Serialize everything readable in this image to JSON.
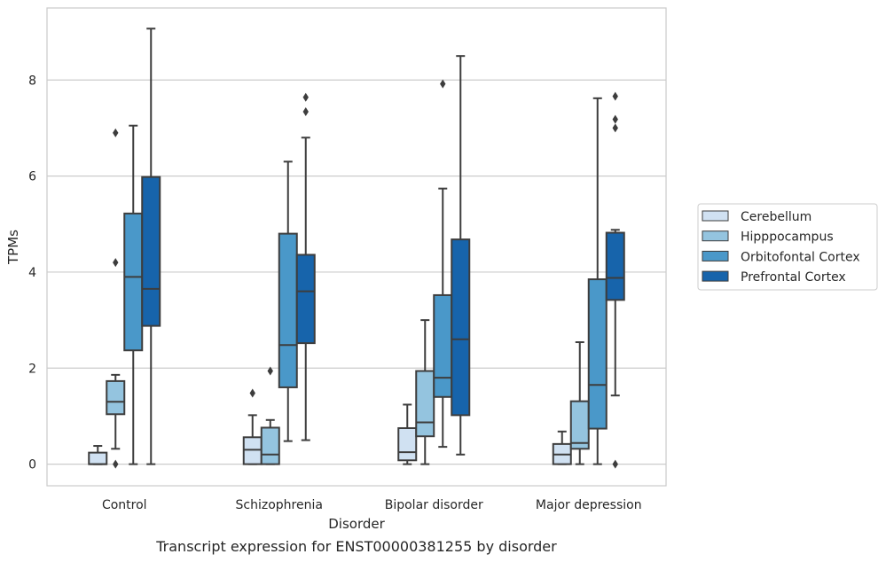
{
  "caption": "Transcript expression for ENST00000381255 by disorder",
  "chart_data": {
    "type": "box",
    "xlabel": "Disorder",
    "ylabel": "TPMs",
    "ylim": [
      -0.45,
      9.5
    ],
    "yticks": [
      0,
      2,
      4,
      6,
      8
    ],
    "grid": "y",
    "legend_position": "right",
    "categories": [
      "Control",
      "Schizophrenia",
      "Bipolar disorder",
      "Major depression"
    ],
    "series": [
      {
        "name": "Cerebellum",
        "color": "#d0e1f2",
        "boxes": [
          {
            "whislo": 0.0,
            "q1": 0.0,
            "med": 0.0,
            "q3": 0.24,
            "whishi": 0.38,
            "fliers": []
          },
          {
            "whislo": 0.0,
            "q1": 0.0,
            "med": 0.3,
            "q3": 0.56,
            "whishi": 1.02,
            "fliers": [
              1.48
            ]
          },
          {
            "whislo": 0.0,
            "q1": 0.08,
            "med": 0.25,
            "q3": 0.75,
            "whishi": 1.24,
            "fliers": []
          },
          {
            "whislo": 0.0,
            "q1": 0.0,
            "med": 0.2,
            "q3": 0.42,
            "whishi": 0.68,
            "fliers": []
          }
        ]
      },
      {
        "name": "Hipppocampus",
        "color": "#94c4df",
        "boxes": [
          {
            "whislo": 0.32,
            "q1": 1.04,
            "med": 1.3,
            "q3": 1.73,
            "whishi": 1.86,
            "fliers": [
              0.0,
              4.2,
              6.9
            ]
          },
          {
            "whislo": 0.0,
            "q1": 0.0,
            "med": 0.2,
            "q3": 0.76,
            "whishi": 0.92,
            "fliers": [
              1.94
            ]
          },
          {
            "whislo": 0.0,
            "q1": 0.58,
            "med": 0.87,
            "q3": 1.94,
            "whishi": 3.0,
            "fliers": []
          },
          {
            "whislo": 0.0,
            "q1": 0.32,
            "med": 0.44,
            "q3": 1.31,
            "whishi": 2.54,
            "fliers": []
          }
        ]
      },
      {
        "name": "Orbitofontal Cortex",
        "color": "#4a98c9",
        "boxes": [
          {
            "whislo": 0.0,
            "q1": 2.37,
            "med": 3.9,
            "q3": 5.22,
            "whishi": 7.05,
            "fliers": []
          },
          {
            "whislo": 0.48,
            "q1": 1.6,
            "med": 2.48,
            "q3": 4.8,
            "whishi": 6.3,
            "fliers": []
          },
          {
            "whislo": 0.36,
            "q1": 1.4,
            "med": 1.8,
            "q3": 3.52,
            "whishi": 5.74,
            "fliers": [
              7.92
            ]
          },
          {
            "whislo": 0.0,
            "q1": 0.74,
            "med": 1.65,
            "q3": 3.85,
            "whishi": 7.62,
            "fliers": []
          }
        ]
      },
      {
        "name": "Prefrontal Cortex",
        "color": "#1764ab",
        "boxes": [
          {
            "whislo": 0.0,
            "q1": 2.88,
            "med": 3.65,
            "q3": 5.98,
            "whishi": 9.07,
            "fliers": []
          },
          {
            "whislo": 0.5,
            "q1": 2.52,
            "med": 3.6,
            "q3": 4.36,
            "whishi": 6.8,
            "fliers": [
              7.34,
              7.64
            ]
          },
          {
            "whislo": 0.2,
            "q1": 1.02,
            "med": 2.6,
            "q3": 4.68,
            "whishi": 8.5,
            "fliers": []
          },
          {
            "whislo": 1.43,
            "q1": 3.42,
            "med": 3.88,
            "q3": 4.82,
            "whishi": 4.88,
            "fliers": [
              0.0,
              7.0,
              7.18,
              7.66
            ]
          }
        ]
      }
    ]
  }
}
